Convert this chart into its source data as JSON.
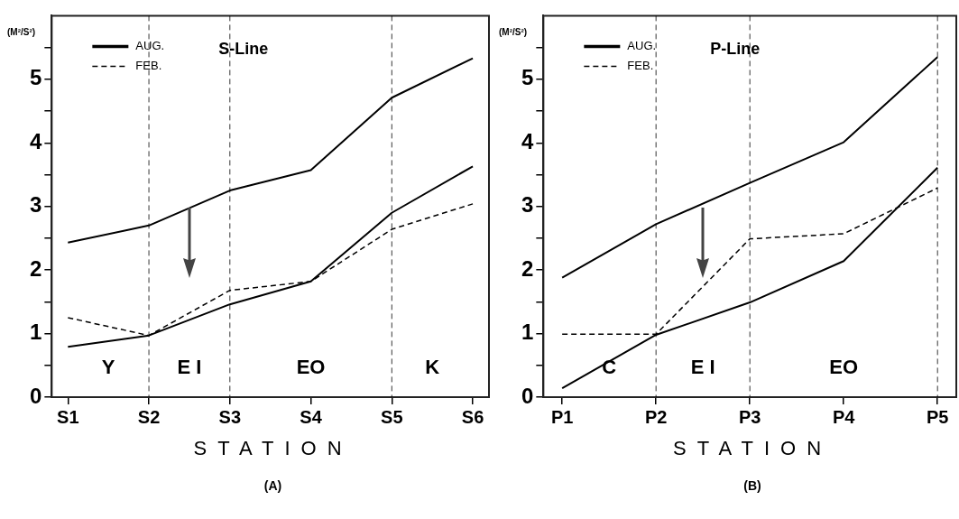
{
  "chart_data": [
    {
      "type": "line",
      "legend_title": "S-Line",
      "xlabel": "STATION",
      "ylabel": "(M²/S²)",
      "annotations": [
        "Y",
        "E I",
        "EO",
        "K",
        "(A)"
      ],
      "legend": "top left",
      "marker": "none",
      "categories": [
        "S1",
        "S2",
        "S3",
        "S4",
        "S5",
        "S6"
      ],
      "ylim": [
        0,
        6
      ],
      "yticks": [
        0,
        {
          "value": 0.5,
          "label": null
        },
        1,
        {
          "value": 1.5,
          "label": null
        },
        2,
        {
          "value": 2.5,
          "label": null
        },
        3,
        {
          "value": 3.5,
          "label": null
        },
        4,
        {
          "value": 4.5,
          "label": null
        },
        5,
        {
          "value": 5.5,
          "label": null
        }
      ],
      "series": [
        {
          "name": "AUG.",
          "color": "#000000",
          "line_style": "solid",
          "values": [
            0.79,
            0.97,
            1.46,
            1.82,
            2.9,
            3.63
          ]
        },
        {
          "name": "FEB.",
          "color": "#000000",
          "line_style": "dashed",
          "values": [
            1.25,
            0.97,
            1.68,
            1.82,
            2.64,
            3.04
          ]
        },
        {
          "color": "#000000",
          "line_style": "solid",
          "values": [
            2.43,
            2.7,
            3.25,
            3.57,
            4.71,
            5.33
          ]
        }
      ],
      "ref_lines": [
        {
          "axis": "x",
          "value": "S2",
          "line_style": "dashed",
          "color": "#000000"
        },
        {
          "axis": "x",
          "value": "S3",
          "line_style": "dashed",
          "color": "#000000"
        },
        {
          "axis": "x",
          "value": "S5",
          "line_style": "dashed",
          "color": "#000000"
        }
      ]
    },
    {
      "type": "line",
      "legend_title": "P-Line",
      "xlabel": "STATION",
      "ylabel": "(M²/S²)",
      "annotations": [
        "C",
        "E I",
        "EO",
        "(B)"
      ],
      "legend": "top left",
      "marker": "none",
      "categories": [
        "P1",
        "P2",
        "P3",
        "P4",
        "P5"
      ],
      "ylim": [
        0,
        6
      ],
      "yticks": [
        0,
        {
          "value": 0.5,
          "label": null
        },
        1,
        {
          "value": 1.5,
          "label": null
        },
        2,
        {
          "value": 2.5,
          "label": null
        },
        3,
        {
          "value": 3.5,
          "label": null
        },
        4,
        {
          "value": 4.5,
          "label": null
        },
        5,
        {
          "value": 5.5,
          "label": null
        }
      ],
      "series": [
        {
          "name": "AUG.",
          "color": "#000000",
          "line_style": "solid",
          "values": [
            0.14,
            0.98,
            1.49,
            2.14,
            3.61
          ]
        },
        {
          "name": "FEB.",
          "color": "#000000",
          "line_style": "dashed",
          "values": [
            0.99,
            0.99,
            2.49,
            2.57,
            3.29
          ]
        },
        {
          "color": "#000000",
          "line_style": "solid",
          "values": [
            1.88,
            2.72,
            3.37,
            4.01,
            5.35
          ]
        }
      ],
      "ref_lines": [
        {
          "axis": "x",
          "value": "P2",
          "line_style": "dashed",
          "color": "#000000"
        },
        {
          "axis": "x",
          "value": "P3",
          "line_style": "dashed",
          "color": "#000000"
        },
        {
          "axis": "x",
          "value": "P5",
          "line_style": "dashed",
          "color": "#000000"
        }
      ]
    }
  ]
}
